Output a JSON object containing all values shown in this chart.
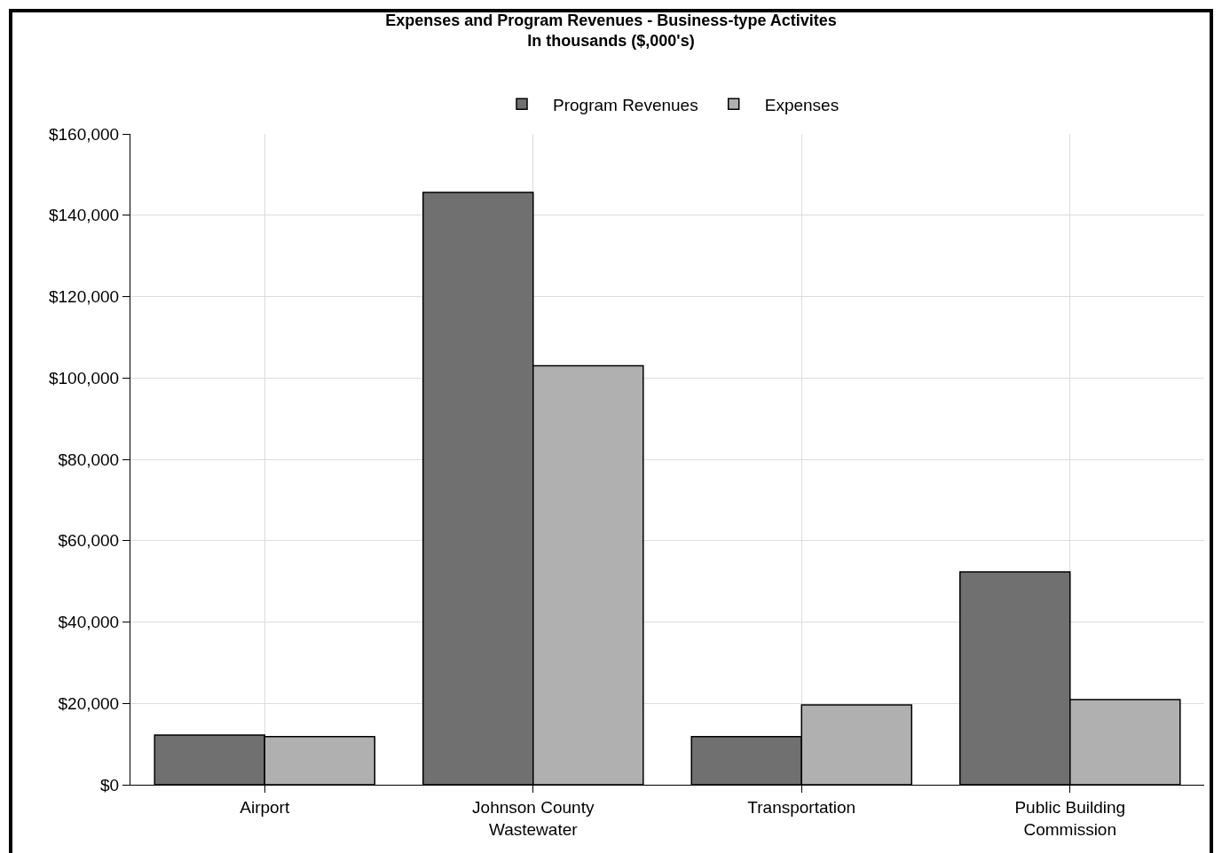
{
  "chart_data": {
    "type": "bar",
    "title": "Expenses and Program Revenues - Business-type Activites",
    "subtitle": "In thousands ($,000's)",
    "categories": [
      "Airport",
      "Johnson County\nWastewater",
      "Transportation",
      "Public Building\nCommission"
    ],
    "series": [
      {
        "name": "Program Revenues",
        "color": "#707070",
        "values": [
          12200,
          145600,
          11800,
          52300
        ]
      },
      {
        "name": "Expenses",
        "color": "#b0b0b0",
        "values": [
          11800,
          103000,
          19600,
          20900
        ]
      }
    ],
    "ylim": [
      0,
      160000
    ],
    "yticks": [
      {
        "value": 0,
        "label": "$0"
      },
      {
        "value": 20000,
        "label": "$20,000"
      },
      {
        "value": 40000,
        "label": "$40,000"
      },
      {
        "value": 60000,
        "label": "$60,000"
      },
      {
        "value": 80000,
        "label": "$80,000"
      },
      {
        "value": 100000,
        "label": "$100,000"
      },
      {
        "value": 120000,
        "label": "$120,000"
      },
      {
        "value": 140000,
        "label": "$140,000"
      },
      {
        "value": 160000,
        "label": "$160,000"
      }
    ],
    "grid": true,
    "legend": "top"
  }
}
